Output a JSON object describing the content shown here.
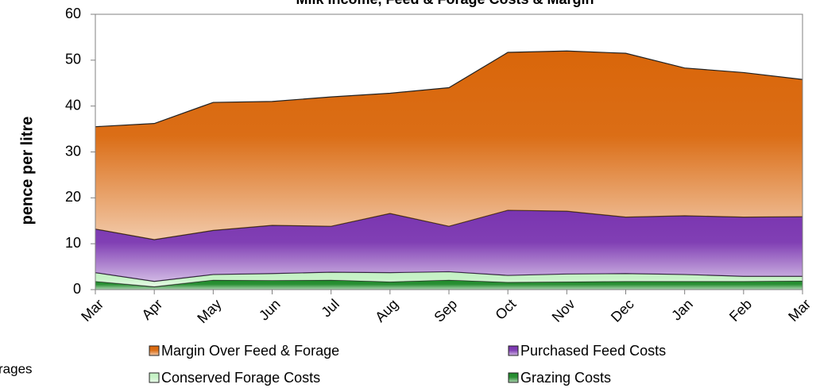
{
  "chart_data": {
    "type": "stacked_area",
    "title": "Milk Income, Feed & Forage Costs & Margin",
    "ylabel": "pence per litre",
    "annotation": "rages",
    "categories": [
      "Mar",
      "Apr",
      "May",
      "Jun",
      "Jul",
      "Aug",
      "Sep",
      "Oct",
      "Nov",
      "Dec",
      "Jan",
      "Feb",
      "Mar"
    ],
    "series": [
      {
        "name": "Margin Over Feed & Forage",
        "color": "#d9660a",
        "values": [
          22.3,
          25.3,
          27.9,
          27.0,
          28.2,
          26.2,
          30.2,
          34.4,
          34.9,
          35.7,
          32.2,
          31.5,
          29.9
        ]
      },
      {
        "name": "Purchased Feed Costs",
        "color": "#7a35b0",
        "values": [
          9.5,
          9.1,
          9.6,
          10.5,
          10.0,
          12.9,
          9.9,
          14.2,
          13.7,
          12.3,
          12.8,
          12.9,
          13.0
        ]
      },
      {
        "name": "Conserved Forage Costs",
        "color": "#c4f2c4",
        "values": [
          1.9,
          1.2,
          1.2,
          1.5,
          1.7,
          2.0,
          1.8,
          1.5,
          1.7,
          1.7,
          1.5,
          1.1,
          1.0
        ]
      },
      {
        "name": "Grazing Costs",
        "color": "#1f8a2a",
        "values": [
          1.8,
          0.6,
          2.1,
          2.0,
          2.1,
          1.7,
          2.1,
          1.6,
          1.7,
          1.8,
          1.8,
          1.8,
          1.9
        ]
      }
    ],
    "ylim": [
      0,
      60
    ],
    "yticks": [
      0,
      10,
      20,
      30,
      40,
      50,
      60
    ]
  }
}
